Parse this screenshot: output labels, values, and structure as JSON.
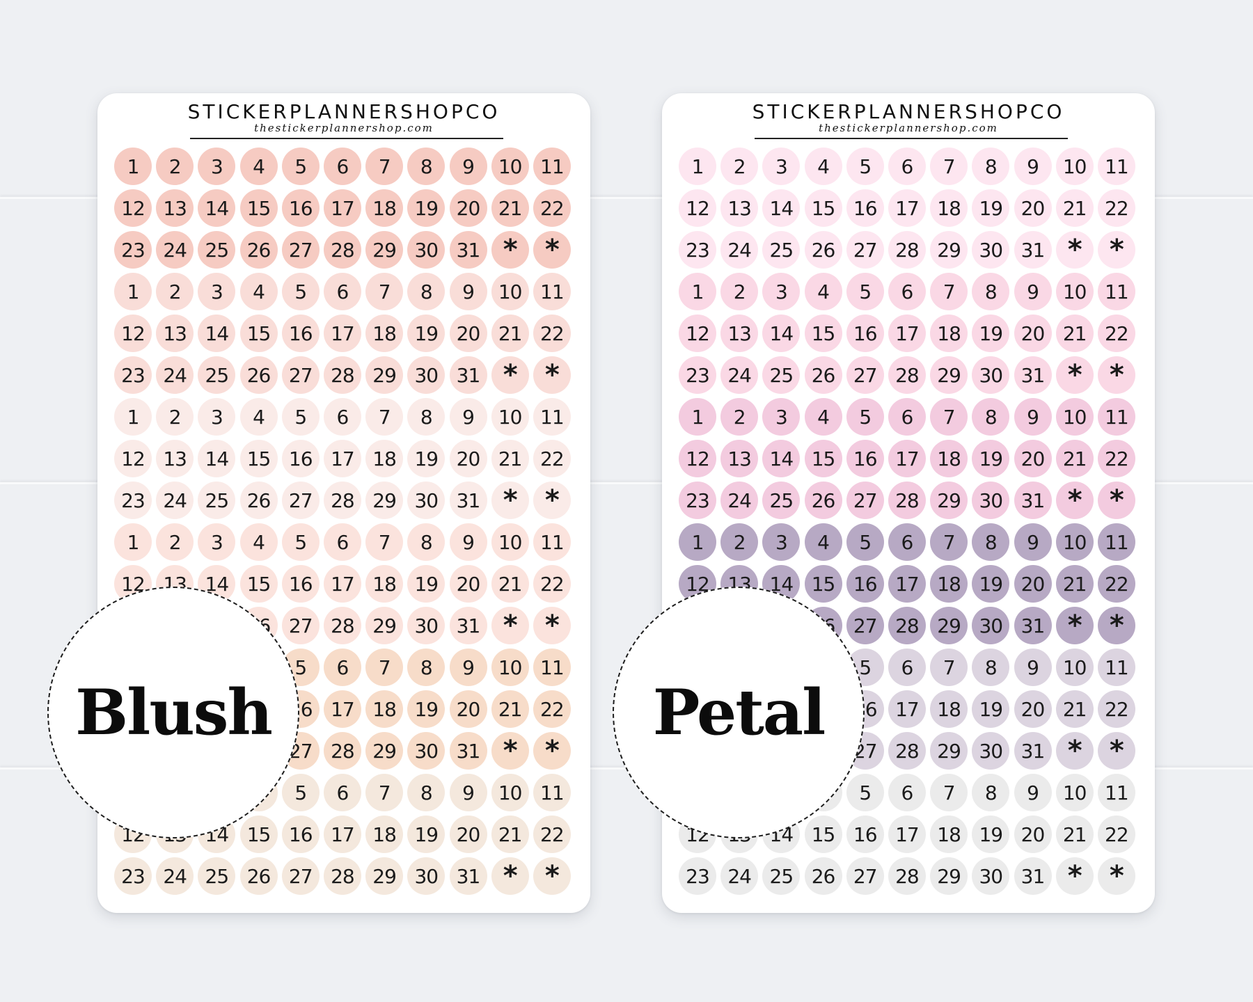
{
  "background_color": "#eef0f3",
  "sheets": [
    {
      "brand": "STICKERPLANNERSHOPCO",
      "url": "thestickerplannershop.com",
      "label": "Blush",
      "group_colors": [
        "#f6cbc2",
        "#f9ddd8",
        "#faebe8",
        "#fbe3dd",
        "#f7dcc9",
        "#f4e8dd"
      ]
    },
    {
      "brand": "STICKERPLANNERSHOPCO",
      "url": "thestickerplannershop.com",
      "label": "Petal",
      "group_colors": [
        "#fde6f0",
        "#fad8e5",
        "#f3cbdf",
        "#b7a9c4",
        "#dcd4e0",
        "#ebebeb"
      ]
    }
  ],
  "sticker_rows": [
    [
      "1",
      "2",
      "3",
      "4",
      "5",
      "6",
      "7",
      "8",
      "9",
      "10",
      "11"
    ],
    [
      "12",
      "13",
      "14",
      "15",
      "16",
      "17",
      "18",
      "19",
      "20",
      "21",
      "22"
    ],
    [
      "23",
      "24",
      "25",
      "26",
      "27",
      "28",
      "29",
      "30",
      "31",
      "*",
      "*"
    ]
  ]
}
